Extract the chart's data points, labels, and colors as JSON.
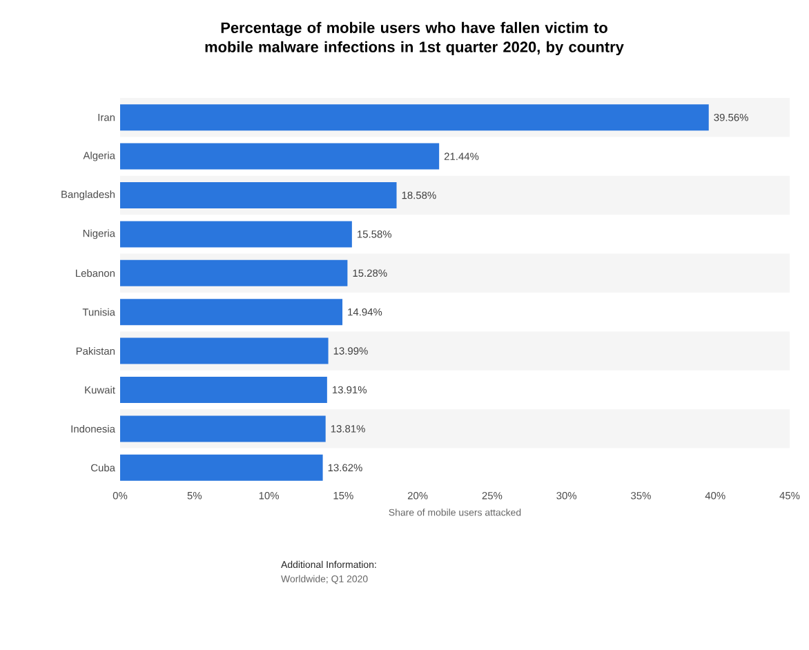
{
  "chart_data": {
    "type": "bar",
    "orientation": "horizontal",
    "title": "Percentage of mobile users who have fallen victim to mobile malware infections in 1st quarter 2020, by country",
    "xlabel": "Share of mobile users attacked",
    "categories": [
      "Iran",
      "Algeria",
      "Bangladesh",
      "Nigeria",
      "Lebanon",
      "Tunisia",
      "Pakistan",
      "Kuwait",
      "Indonesia",
      "Cuba"
    ],
    "values": [
      39.56,
      21.44,
      18.58,
      15.58,
      15.28,
      14.94,
      13.99,
      13.91,
      13.81,
      13.62
    ],
    "value_labels": [
      "39.56%",
      "21.44%",
      "18.58%",
      "15.58%",
      "15.28%",
      "14.94%",
      "13.99%",
      "13.91%",
      "13.81%",
      "13.62%"
    ],
    "color": "#2a76dd",
    "xlim": [
      0,
      45
    ],
    "xticks": [
      {
        "value": 0,
        "label": "0%"
      },
      {
        "value": 5,
        "label": "5%"
      },
      {
        "value": 10,
        "label": "10%"
      },
      {
        "value": 15,
        "label": "15%"
      },
      {
        "value": 20,
        "label": "20%"
      },
      {
        "value": 25,
        "label": "25%"
      },
      {
        "value": 30,
        "label": "30%"
      },
      {
        "value": 35,
        "label": "35%"
      },
      {
        "value": 40,
        "label": "40%"
      },
      {
        "value": 45,
        "label": "45%"
      }
    ],
    "annotations": [
      "Additional Information:",
      "Worldwide; Q1 2020"
    ]
  }
}
